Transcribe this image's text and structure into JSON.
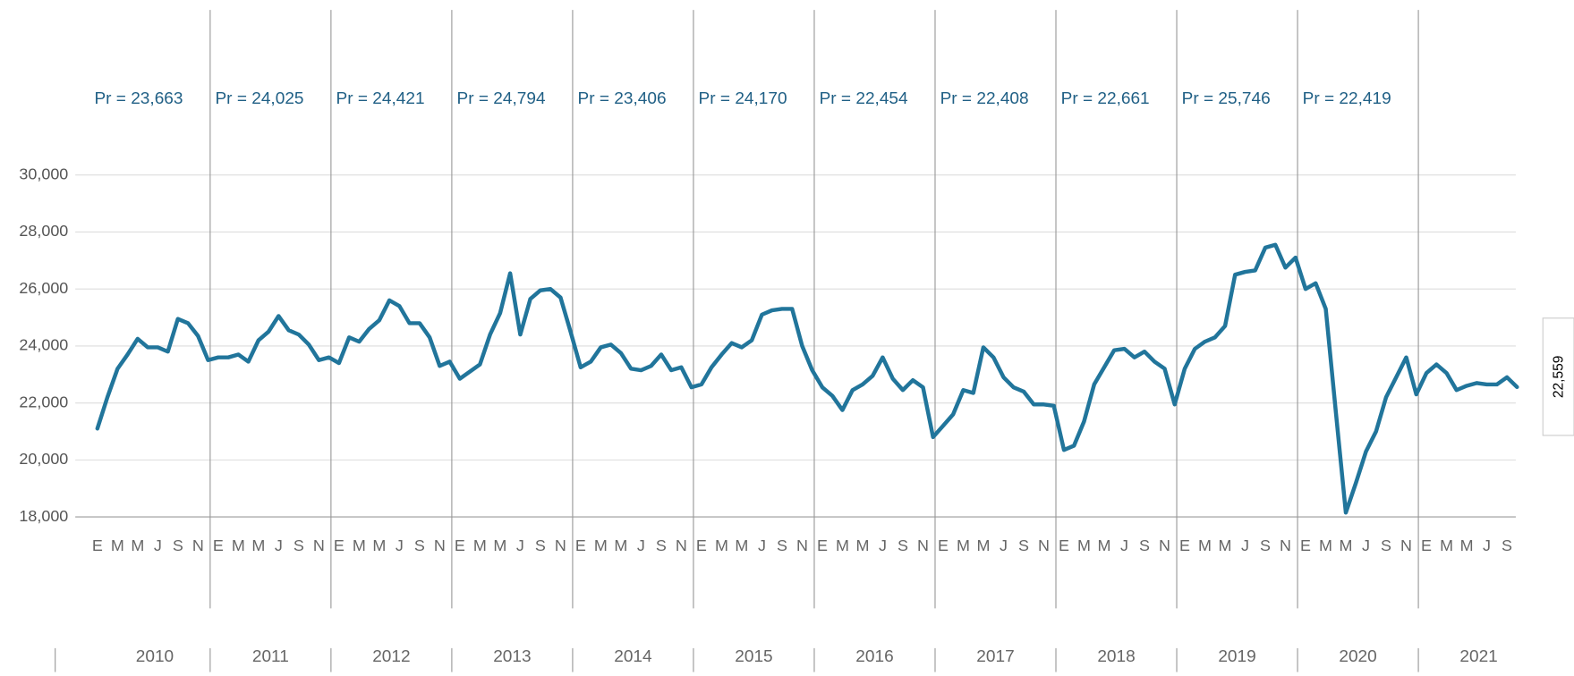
{
  "chart_data": {
    "type": "line",
    "categories": [
      "E",
      null,
      "M",
      null,
      "M",
      null,
      "J",
      null,
      "S",
      null,
      "N",
      null,
      "E",
      null,
      "M",
      null,
      "M",
      null,
      "J",
      null,
      "S",
      null,
      "N",
      null,
      "E",
      null,
      "M",
      null,
      "M",
      null,
      "J",
      null,
      "S",
      null,
      "N",
      null,
      "E",
      null,
      "M",
      null,
      "M",
      null,
      "J",
      null,
      "S",
      null,
      "N",
      null,
      "E",
      null,
      "M",
      null,
      "M",
      null,
      "J",
      null,
      "S",
      null,
      "N",
      null,
      "E",
      null,
      "M",
      null,
      "M",
      null,
      "J",
      null,
      "S",
      null,
      "N",
      null,
      "E",
      null,
      "M",
      null,
      "M",
      null,
      "J",
      null,
      "S",
      null,
      "N",
      null,
      "E",
      null,
      "M",
      null,
      "M",
      null,
      "J",
      null,
      "S",
      null,
      "N",
      null,
      "E",
      null,
      "M",
      null,
      "M",
      null,
      "J",
      null,
      "S",
      null,
      "N",
      null,
      "E",
      null,
      "M",
      null,
      "M",
      null,
      "J",
      null,
      "S",
      null,
      "N",
      null,
      "E",
      null,
      "M",
      null,
      "M",
      null,
      "J",
      null,
      "S",
      null,
      "N",
      null,
      "E",
      null,
      "M",
      null,
      "M",
      null,
      "J",
      null,
      "S",
      null
    ],
    "values": [
      21100,
      22200,
      23200,
      23700,
      24250,
      23950,
      23950,
      23800,
      24950,
      24800,
      24350,
      23500,
      23600,
      23600,
      23700,
      23450,
      24200,
      24500,
      25050,
      24550,
      24400,
      24050,
      23500,
      23600,
      23400,
      24300,
      24150,
      24600,
      24900,
      25600,
      25400,
      24800,
      24800,
      24300,
      23300,
      23450,
      22850,
      23100,
      23350,
      24400,
      25150,
      26550,
      24400,
      25650,
      25950,
      26000,
      25700,
      24500,
      23250,
      23450,
      23950,
      24050,
      23750,
      23200,
      23150,
      23300,
      23700,
      23150,
      23250,
      22550,
      22650,
      23250,
      23700,
      24100,
      23950,
      24200,
      25100,
      25250,
      25300,
      25300,
      24000,
      23150,
      22550,
      22250,
      21750,
      22450,
      22650,
      22950,
      23600,
      22850,
      22450,
      22800,
      22550,
      20800,
      21200,
      21600,
      22450,
      22350,
      23950,
      23600,
      22900,
      22550,
      22400,
      21950,
      21950,
      21900,
      20350,
      20500,
      21350,
      22650,
      23250,
      23850,
      23900,
      23600,
      23800,
      23450,
      23200,
      21950,
      23200,
      23900,
      24150,
      24300,
      24700,
      26500,
      26600,
      26650,
      27450,
      27550,
      26750,
      27100,
      26000,
      26200,
      25300,
      21700,
      18150,
      19200,
      20300,
      21000,
      22200,
      22900,
      23600,
      22300,
      23050,
      23350,
      23050,
      22450,
      22600,
      22700,
      22650,
      22650,
      22900,
      22559
    ],
    "last_value_label": "22,559",
    "color": "#21759b",
    "groups": [
      "2010",
      "2011",
      "2012",
      "2013",
      "2014",
      "2015",
      "2016",
      "2017",
      "2018",
      "2019",
      "2020",
      "2021"
    ],
    "annotations": [
      "Pr = 23,663",
      "Pr = 24,025",
      "Pr = 24,421",
      "Pr = 24,794",
      "Pr = 23,406",
      "Pr = 24,170",
      "Pr = 22,454",
      "Pr = 22,408",
      "Pr = 22,661",
      "Pr = 25,746",
      "Pr = 22,419"
    ],
    "ylim": [
      18000,
      30000
    ],
    "yticks": [
      {
        "value": 18000,
        "label": "18,000"
      },
      {
        "value": 20000,
        "label": "20,000"
      },
      {
        "value": 22000,
        "label": "22,000"
      },
      {
        "value": 24000,
        "label": "24,000"
      },
      {
        "value": 26000,
        "label": "26,000"
      },
      {
        "value": 28000,
        "label": "28,000"
      },
      {
        "value": 30000,
        "label": "30,000"
      }
    ],
    "grid": true
  }
}
